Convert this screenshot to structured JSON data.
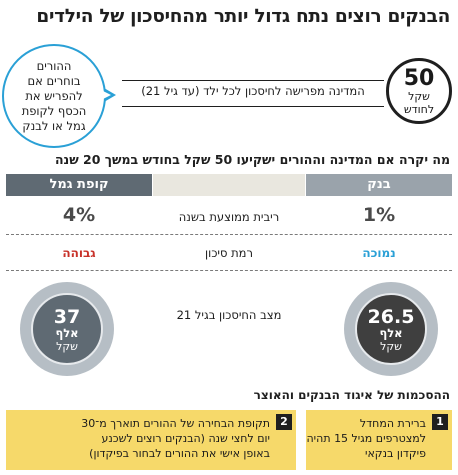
{
  "title": "הבנקים רוצים נתח גדול יותר מהחיסכון של הילדים",
  "parents_bubble": {
    "line1": "ההורים",
    "line2": "בוחרים אם",
    "line3": "להפריש את",
    "line4": "הכסף לקופת",
    "line5": "גמל או לבנק"
  },
  "state_contribution": {
    "amount": "50",
    "unit_line1": "שקל",
    "unit_line2": "לחודש",
    "text": "המדינה מפרישה לחיסכון לכל ילד (עד גיל 21)"
  },
  "comparison_subtitle": "מה יקרה אם המדינה וההורים ישקיעו 50 שקל בחודש במשך 20 שנה",
  "columns": {
    "bank": "בנק",
    "provident": "קופת גמל"
  },
  "rows": {
    "interest": {
      "label": "ריבית ממוצעת בשנה",
      "bank": "1%",
      "provident": "4%"
    },
    "risk": {
      "label": "רמת סיכון",
      "bank": "נמוכה",
      "provident": "גבוהה"
    },
    "savings": {
      "label": "מצב החיסכון בגיל 21",
      "bank_value": "26.5",
      "provident_value": "37",
      "unit_line1": "אלף",
      "unit_line2": "שקל"
    }
  },
  "colors": {
    "accent_blue": "#2aa0d6",
    "risk_low": "#2aa0d6",
    "risk_high": "#c8322a",
    "bank_header": "#9aa3ab",
    "provident_header": "#5f6a73",
    "agreement_box": "#f6d96a"
  },
  "agreements": {
    "title": "ההסכמות של איגוד הבנקים והאוצר",
    "items": [
      {
        "num": "1",
        "line1": "ברירת המחדל",
        "line2": "למצטרפים מגיל 15 תהיה",
        "line3": "פיקדון בנקאי"
      },
      {
        "num": "2",
        "line1": "תקופת הבחירה של ההורים תוארך מ־30",
        "line2": "יום לחצי שנה (הבנקים רוצים לשכנע",
        "line3": "באופן אישי את ההורים לבחור בפיקדון)"
      }
    ]
  }
}
